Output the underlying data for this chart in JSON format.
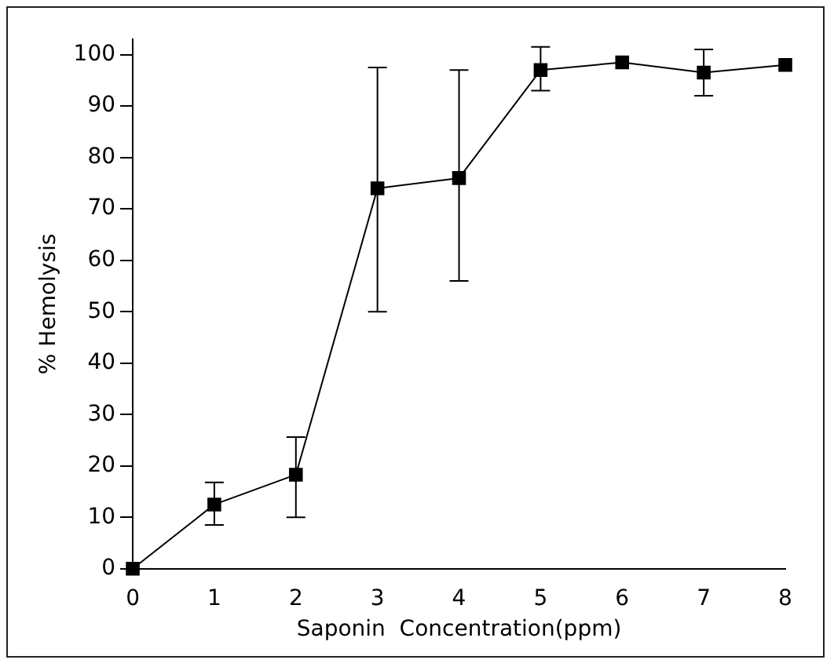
{
  "chart_data": {
    "type": "line",
    "xlabel": "Saponin  Concentration(ppm)",
    "ylabel": "% Hemolysis",
    "x": [
      0,
      1,
      2,
      3,
      4,
      5,
      6,
      7,
      8
    ],
    "series": [
      {
        "color": "#000000",
        "values": [
          0,
          12.5,
          18.3,
          74,
          76,
          97,
          98.5,
          96.5,
          98
        ],
        "errors": [
          null,
          [
            8.5,
            16.8
          ],
          [
            10,
            25.6
          ],
          [
            50,
            97.5
          ],
          [
            56,
            97
          ],
          [
            93,
            101.5
          ],
          null,
          [
            92,
            101
          ],
          null
        ]
      }
    ],
    "xlim": [
      0,
      8
    ],
    "xticks": [
      0,
      1,
      2,
      3,
      4,
      5,
      6,
      7,
      8
    ],
    "ylim": [
      0,
      103
    ],
    "yticks": [
      0,
      10,
      20,
      30,
      40,
      50,
      60,
      70,
      80,
      90,
      100
    ],
    "grid": false,
    "legend": false,
    "marker": "square",
    "line_style": "solid"
  }
}
